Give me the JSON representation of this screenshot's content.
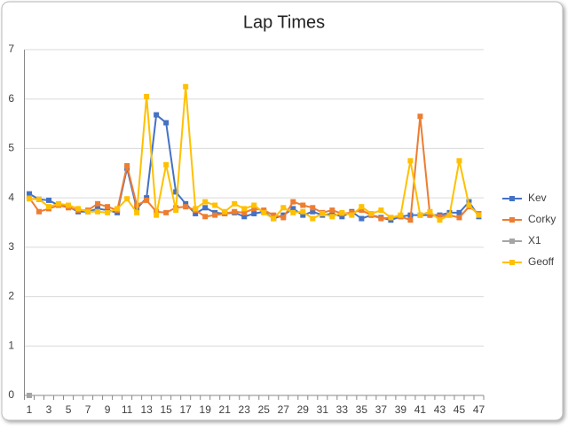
{
  "chart_data": {
    "type": "line",
    "title": "Lap Times",
    "categories": [
      1,
      null,
      3,
      null,
      5,
      null,
      7,
      null,
      9,
      null,
      11,
      null,
      13,
      null,
      15,
      null,
      17,
      null,
      19,
      null,
      21,
      null,
      23,
      null,
      25,
      null,
      27,
      null,
      29,
      null,
      31,
      null,
      33,
      null,
      35,
      null,
      37,
      null,
      39,
      null,
      41,
      null,
      43,
      null,
      45,
      null,
      47
    ],
    "series": [
      {
        "name": "Kev",
        "color": "#4472c4",
        "values": [
          4.08,
          3.97,
          3.95,
          3.85,
          3.82,
          3.72,
          3.72,
          3.78,
          3.75,
          3.7,
          4.6,
          3.78,
          4.0,
          5.68,
          5.52,
          4.12,
          3.88,
          3.68,
          3.8,
          3.7,
          3.68,
          3.7,
          3.62,
          3.68,
          3.72,
          3.58,
          3.65,
          3.78,
          3.65,
          3.72,
          3.65,
          3.68,
          3.62,
          3.72,
          3.58,
          3.65,
          3.6,
          3.55,
          3.62,
          3.65,
          3.65,
          3.65,
          3.65,
          3.7,
          3.7,
          3.92,
          3.62
        ]
      },
      {
        "name": "Corky",
        "color": "#ed7d31",
        "values": [
          4.0,
          3.72,
          3.78,
          3.85,
          3.8,
          3.75,
          3.75,
          3.88,
          3.82,
          3.75,
          4.65,
          3.85,
          3.95,
          3.72,
          3.7,
          3.8,
          3.82,
          3.75,
          3.62,
          3.65,
          3.68,
          3.72,
          3.7,
          3.78,
          3.75,
          3.65,
          3.6,
          3.92,
          3.85,
          3.8,
          3.7,
          3.75,
          3.68,
          3.7,
          3.75,
          3.65,
          3.58,
          3.6,
          3.62,
          3.55,
          5.65,
          3.65,
          3.62,
          3.65,
          3.6,
          3.82,
          3.68
        ]
      },
      {
        "name": "X1",
        "color": "#a5a5a5",
        "values": [
          0,
          null,
          null,
          null,
          null,
          null,
          null,
          null,
          null,
          null,
          null,
          null,
          null,
          null,
          null,
          null,
          null,
          null,
          null,
          null,
          null,
          null,
          null,
          null,
          null,
          null,
          null,
          null,
          null,
          null,
          null,
          null,
          null,
          null,
          null,
          null,
          null,
          null,
          null,
          null,
          null,
          null,
          null,
          null,
          null,
          null,
          null
        ]
      },
      {
        "name": "Geoff",
        "color": "#ffc000",
        "values": [
          3.98,
          3.97,
          3.82,
          3.88,
          3.85,
          3.78,
          3.72,
          3.72,
          3.7,
          3.78,
          3.98,
          3.7,
          6.05,
          3.65,
          4.67,
          3.75,
          6.25,
          3.78,
          3.92,
          3.85,
          3.72,
          3.88,
          3.78,
          3.85,
          3.7,
          3.58,
          3.8,
          3.7,
          3.72,
          3.58,
          3.68,
          3.62,
          3.7,
          3.65,
          3.82,
          3.68,
          3.75,
          3.6,
          3.65,
          4.75,
          3.65,
          3.72,
          3.55,
          3.65,
          4.75,
          3.85,
          3.65
        ]
      }
    ],
    "ylim": [
      0,
      7
    ],
    "yticks": [
      0,
      1,
      2,
      3,
      4,
      5,
      6,
      7
    ],
    "grid": true,
    "legend": "right"
  }
}
